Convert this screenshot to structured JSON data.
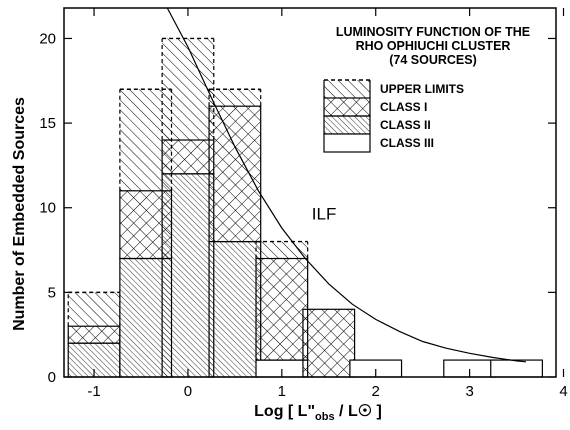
{
  "chart_data": {
    "type": "bar",
    "subtype": "stacked-histogram",
    "title_lines": [
      "LUMINOSITY FUNCTION  OF THE",
      "RHO OPHIUCHI CLUSTER",
      "(74 SOURCES)"
    ],
    "ylabel": "Number of Embedded Sources",
    "xlabel_parts": {
      "pre": "Log [ L\"",
      "sub": "obs",
      "post": " / L",
      "sun": "☉",
      "end": " ]"
    },
    "xlim": [
      -1.32,
      3.92
    ],
    "ylim": [
      0,
      21.8
    ],
    "x_ticks": [
      -1,
      0,
      1,
      2,
      3,
      4
    ],
    "x_tick_labels": [
      "-1",
      "0",
      "1",
      "2",
      "3",
      "4"
    ],
    "y_ticks": [
      0,
      5,
      10,
      15,
      20
    ],
    "y_tick_labels": [
      "0",
      "5",
      "10",
      "15",
      "20"
    ],
    "bin_width": 0.55,
    "bins": [
      {
        "center": -1.0,
        "class_iii": 0,
        "class_ii": 2,
        "class_i": 1,
        "upper_limits": 2
      },
      {
        "center": -0.45,
        "class_iii": 0,
        "class_ii": 7,
        "class_i": 4,
        "upper_limits": 6
      },
      {
        "center": 0.0,
        "class_iii": 0,
        "class_ii": 12,
        "class_i": 2,
        "upper_limits": 6
      },
      {
        "center": 0.5,
        "class_iii": 0,
        "class_ii": 8,
        "class_i": 8,
        "upper_limits": 1
      },
      {
        "center": 1.0,
        "class_iii": 1,
        "class_ii": 0,
        "class_i": 6,
        "upper_limits": 1
      },
      {
        "center": 1.5,
        "class_iii": 0,
        "class_ii": 0,
        "class_i": 4,
        "upper_limits": 0
      },
      {
        "center": 2.0,
        "class_iii": 1,
        "class_ii": 0,
        "class_i": 0,
        "upper_limits": 0
      },
      {
        "center": 3.0,
        "class_iii": 1,
        "class_ii": 0,
        "class_i": 0,
        "upper_limits": 0
      },
      {
        "center": 3.5,
        "class_iii": 1,
        "class_ii": 0,
        "class_i": 0,
        "upper_limits": 0
      }
    ],
    "legend": [
      {
        "key": "upper_limits",
        "label": "UPPER LIMITS"
      },
      {
        "key": "class_i",
        "label": "CLASS I"
      },
      {
        "key": "class_ii",
        "label": "CLASS II"
      },
      {
        "key": "class_iii",
        "label": "CLASS III"
      }
    ],
    "legend_position": "top-right",
    "ilf_curve": {
      "label": "ILF",
      "label_position": [
        1.45,
        9.3
      ],
      "points": [
        [
          -0.22,
          21.8
        ],
        [
          0.0,
          19.5
        ],
        [
          0.25,
          16.5
        ],
        [
          0.5,
          13.6
        ],
        [
          0.75,
          11.0
        ],
        [
          1.0,
          8.8
        ],
        [
          1.25,
          7.0
        ],
        [
          1.5,
          5.5
        ],
        [
          1.75,
          4.3
        ],
        [
          2.0,
          3.4
        ],
        [
          2.25,
          2.7
        ],
        [
          2.5,
          2.1
        ],
        [
          2.75,
          1.7
        ],
        [
          3.0,
          1.4
        ],
        [
          3.25,
          1.15
        ],
        [
          3.5,
          0.95
        ],
        [
          3.6,
          0.9
        ]
      ]
    },
    "grid": false
  }
}
